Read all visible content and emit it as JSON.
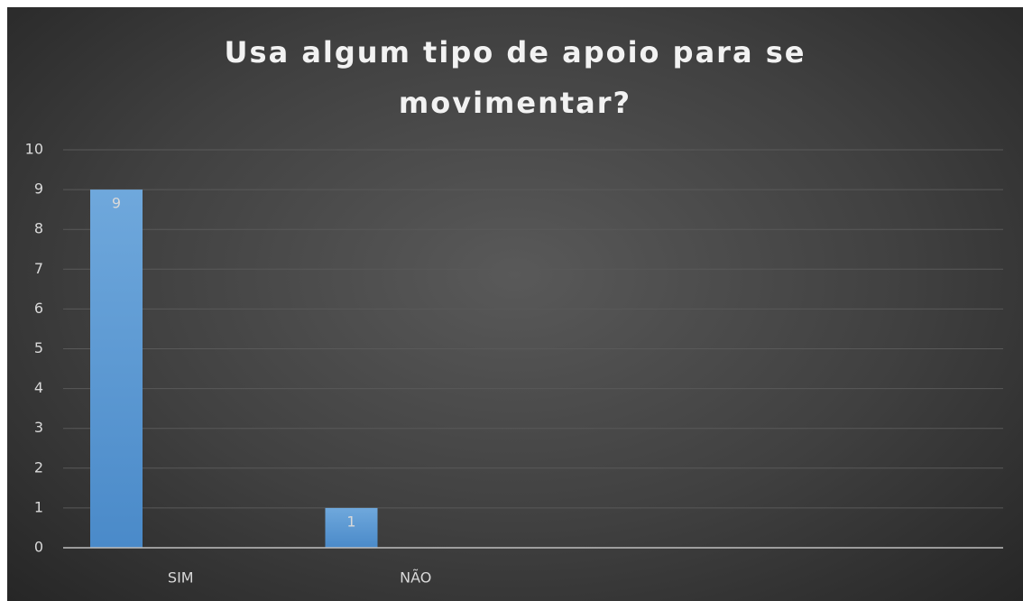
{
  "chart_data": {
    "type": "bar",
    "title": "Usa algum tipo de apoio para se movimentar?",
    "categories": [
      "SIM",
      "NÃO",
      null,
      null
    ],
    "values": [
      9,
      1,
      null,
      null
    ],
    "color": "#5b9bd5",
    "ylim": [
      0,
      10
    ],
    "yticks": [
      0,
      1,
      2,
      3,
      4,
      5,
      6,
      7,
      8,
      9,
      10
    ],
    "grid": true
  }
}
